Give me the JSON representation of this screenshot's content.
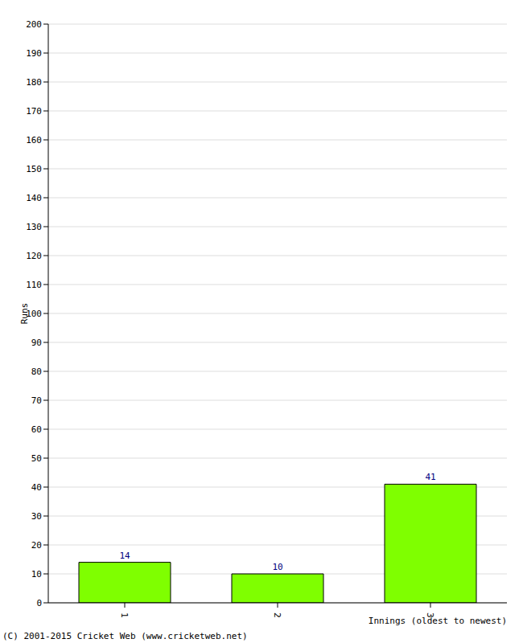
{
  "chart_data": {
    "type": "bar",
    "categories": [
      "1",
      "2",
      "3"
    ],
    "values": [
      14,
      10,
      41
    ],
    "color": "#7fff00",
    "x_label": "Innings (oldest to newest)",
    "y_label": "Runs",
    "annotations": [
      "(C) 2001-2015 Cricket Web (www.cricketweb.net)"
    ],
    "ylim": [
      0,
      200
    ],
    "yticks": [
      0,
      10,
      20,
      30,
      40,
      50,
      60,
      70,
      80,
      90,
      100,
      110,
      120,
      130,
      140,
      150,
      160,
      170,
      180,
      190,
      200
    ],
    "grid": true,
    "data_labels": true
  }
}
